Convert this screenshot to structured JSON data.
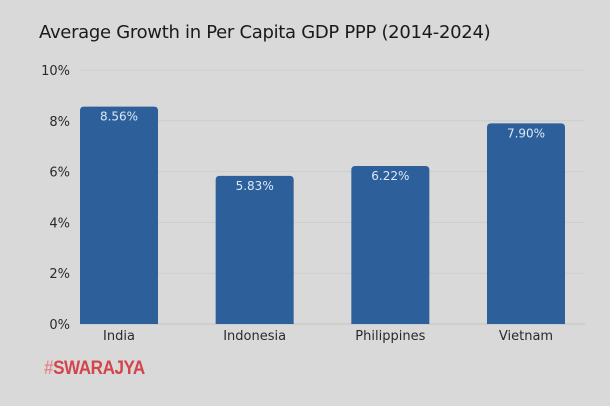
{
  "chart_data": {
    "type": "bar",
    "title": "Average Growth in Per Capita GDP PPP (2014-2024)",
    "xlabel": "",
    "ylabel": "",
    "categories": [
      "India",
      "Indonesia",
      "Philippines",
      "Vietnam"
    ],
    "values": [
      8.56,
      5.83,
      6.22,
      7.9
    ],
    "data_labels": [
      "8.56%",
      "5.83%",
      "6.22%",
      "7.90%"
    ],
    "ylim": [
      0,
      10
    ],
    "yticks": [
      0,
      2,
      4,
      6,
      8,
      10
    ],
    "ytick_labels": [
      "0%",
      "2%",
      "4%",
      "6%",
      "8%",
      "10%"
    ],
    "grid": true,
    "legend": "none",
    "bar_color": "#2d5f9a",
    "label_color": "#dbe8f7"
  },
  "brand": {
    "hash": "#",
    "name": "SWARAJYA",
    "color": "#d2454b"
  }
}
